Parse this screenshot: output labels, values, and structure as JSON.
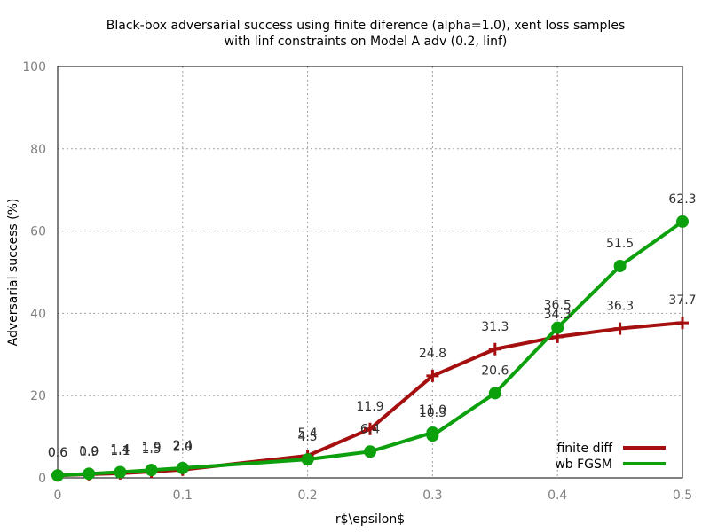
{
  "chart_data": {
    "type": "line",
    "title": "Black-box adversarial success using finite diference (alpha=1.0), xent loss samples",
    "subtitle": "with linf constraints on Model A adv (0.2, linf)",
    "xlabel": "r$\\epsilon$",
    "ylabel": "Adversarial success (%)",
    "xlim": [
      0,
      0.5
    ],
    "ylim": [
      0,
      100
    ],
    "xticks": [
      "0",
      "0.1",
      "0.2",
      "0.3",
      "0.4",
      "0.5"
    ],
    "yticks": [
      "0",
      "20",
      "40",
      "60",
      "80",
      "100"
    ],
    "grid": true,
    "legend_position": "bottom-right",
    "series": [
      {
        "name": "finite diff",
        "color": "#a50f0f",
        "marker": "plus",
        "x": [
          0,
          0.025,
          0.05,
          0.075,
          0.1,
          0.2,
          0.25,
          0.3,
          0.35,
          0.4,
          0.45,
          0.5
        ],
        "y": [
          0.6,
          0.9,
          1.1,
          1.5,
          2.0,
          5.4,
          11.9,
          24.8,
          31.3,
          34.3,
          36.3,
          37.7
        ],
        "labels": [
          "0.6",
          "0.9",
          "1.1",
          "1.5",
          "2.0",
          "5.4",
          "11.9",
          "24.8",
          "31.3",
          "34.3",
          "36.3",
          "37.7"
        ]
      },
      {
        "name": "wb FGSM",
        "color": "#0ca00c",
        "marker": "circle",
        "x": [
          0,
          0.025,
          0.05,
          0.075,
          0.1,
          0.2,
          0.25,
          0.3,
          0.3,
          0.35,
          0.4,
          0.45,
          0.5
        ],
        "y": [
          0.6,
          1.0,
          1.4,
          1.9,
          2.4,
          4.5,
          6.4,
          11.0,
          10.3,
          20.6,
          36.5,
          51.5,
          62.3
        ],
        "labels": [
          "0.6",
          "1.0",
          "1.4",
          "1.9",
          "2.4",
          "4.5",
          "6.4",
          "11.0",
          "10.3",
          "20.6",
          "36.5",
          "51.5",
          "62.3"
        ]
      }
    ]
  }
}
